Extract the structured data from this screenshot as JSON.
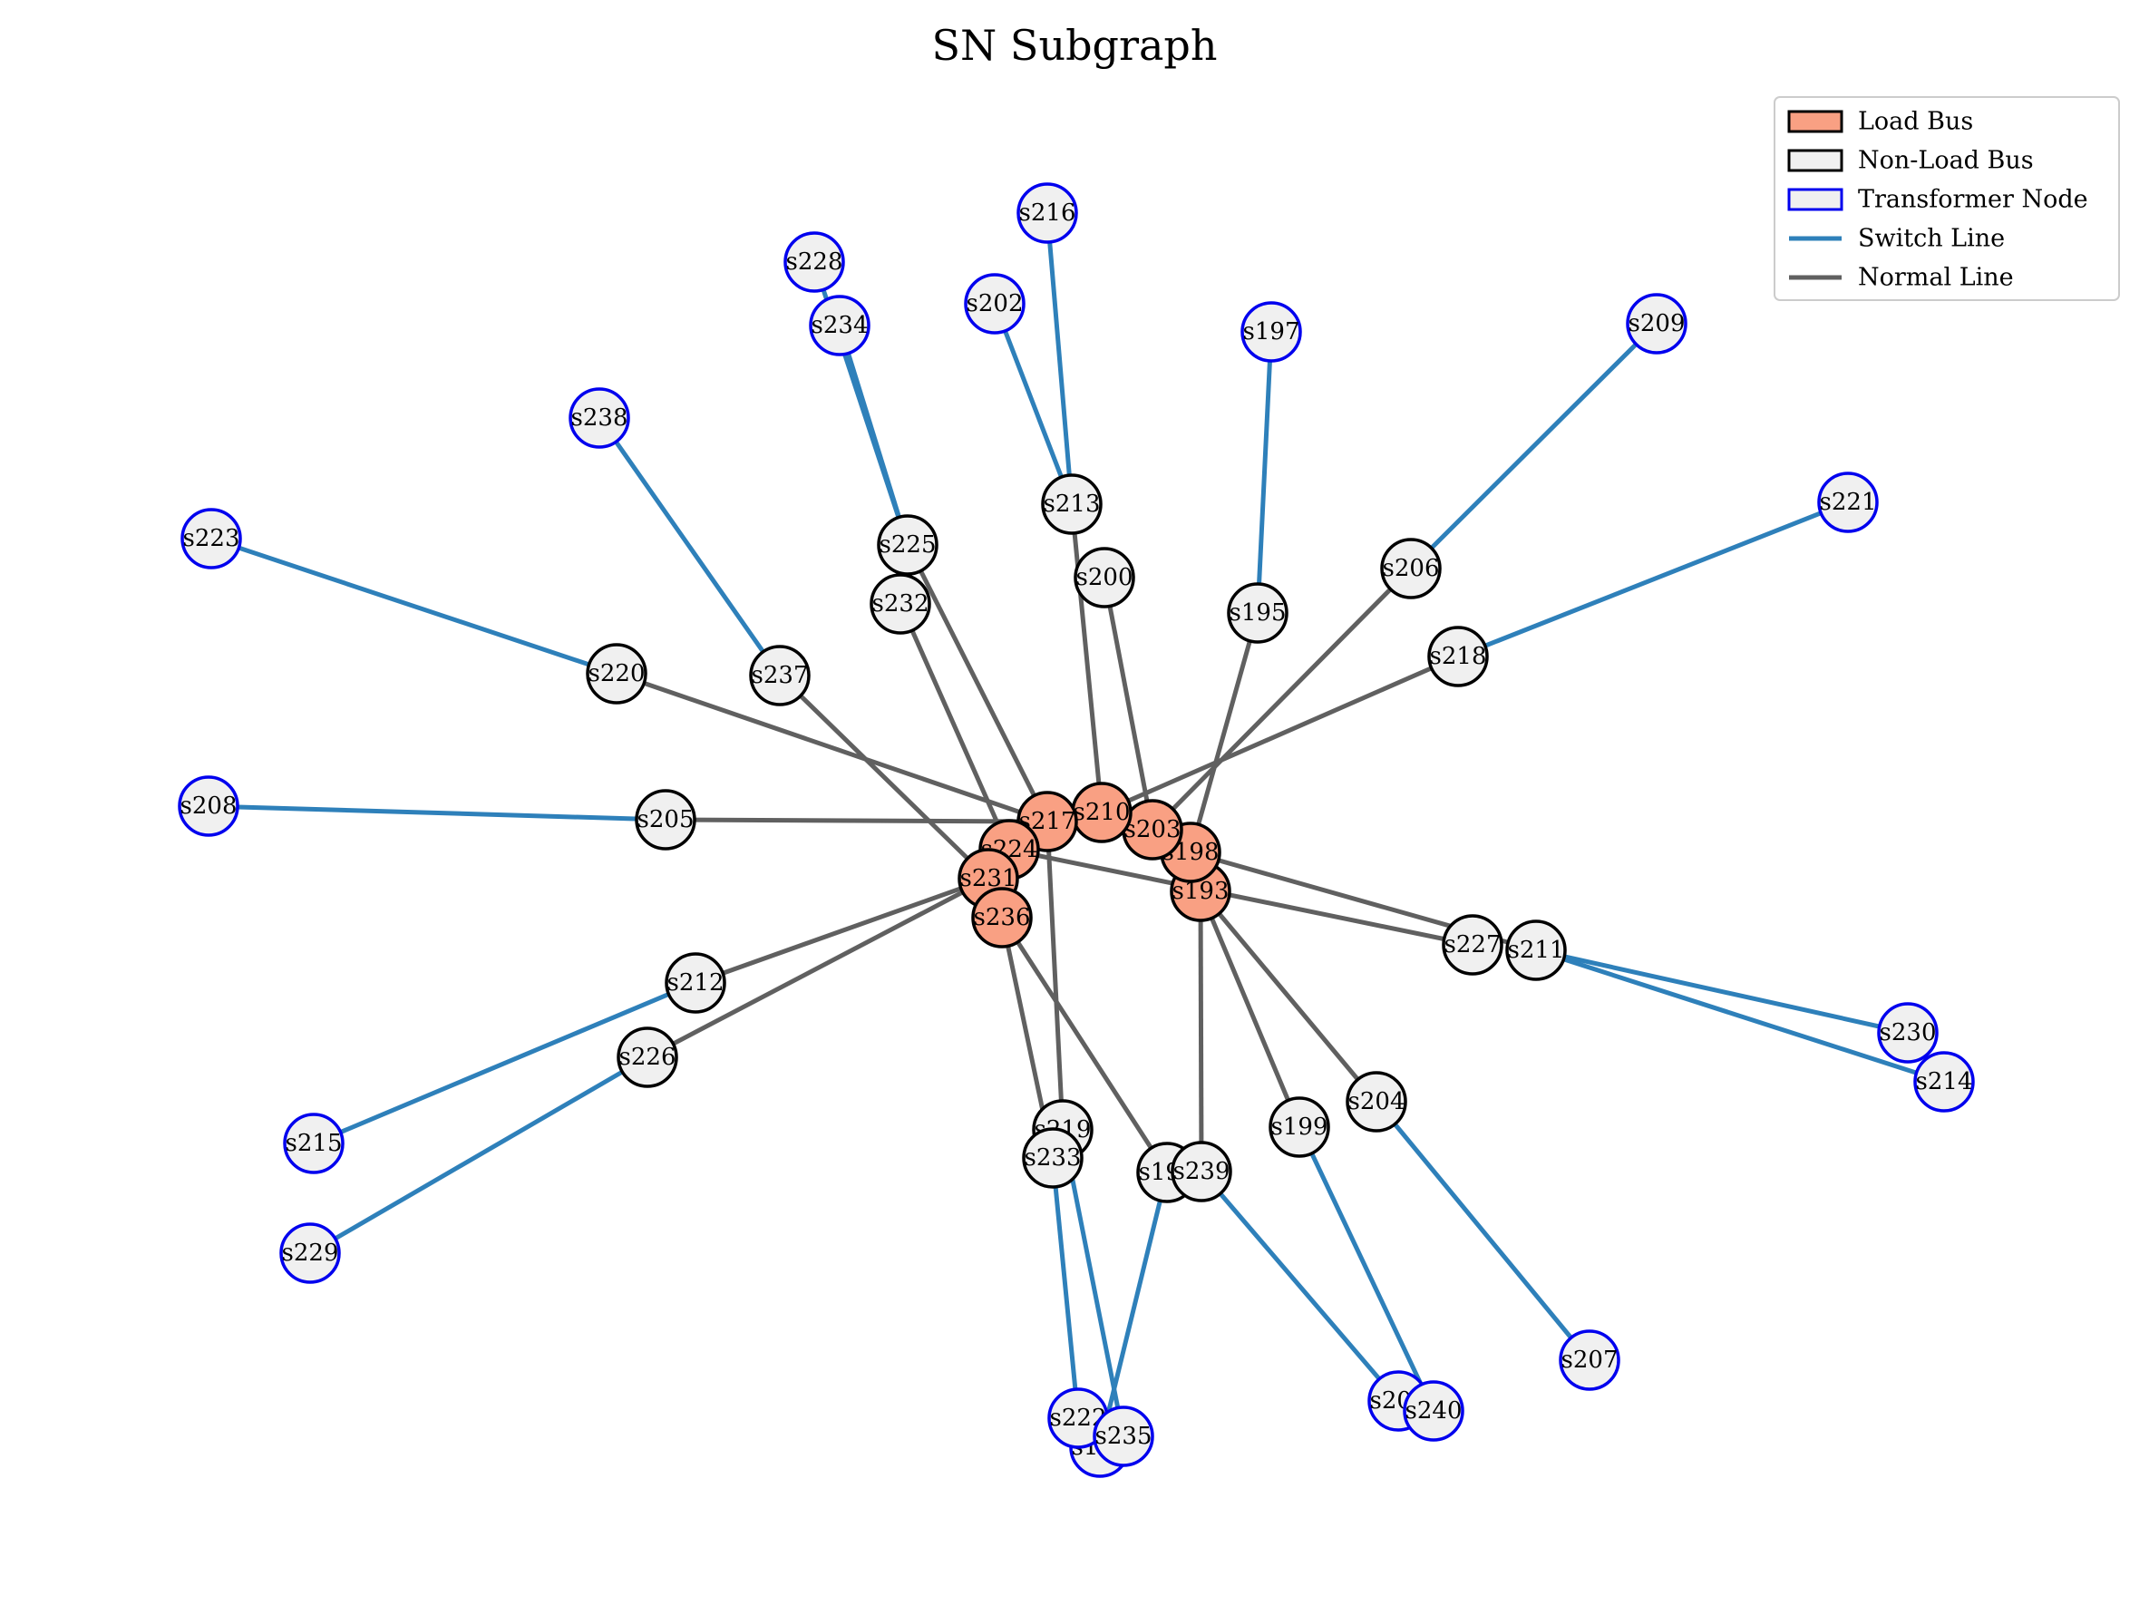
{
  "title": "SN Subgraph",
  "colors": {
    "load_fill": "#F9A083",
    "nonload_fill": "#F0F0F0",
    "node_stroke": "#000000",
    "transformer_stroke": "#0000EE",
    "switch_line": "#2E80BA",
    "normal_line": "#606060"
  },
  "legend": {
    "placement": "top-right",
    "items": [
      {
        "kind": "load",
        "label": "Load Bus"
      },
      {
        "kind": "nonload",
        "label": "Non-Load Bus"
      },
      {
        "kind": "transformer",
        "label": "Transformer Node"
      },
      {
        "kind": "switch",
        "label": "Switch Line"
      },
      {
        "kind": "normal",
        "label": "Normal Line"
      }
    ]
  },
  "nodes": [
    {
      "id": "s193",
      "type": "load"
    },
    {
      "id": "s194",
      "type": "nonload"
    },
    {
      "id": "s195",
      "type": "nonload"
    },
    {
      "id": "s196",
      "type": "transformer"
    },
    {
      "id": "s197",
      "type": "transformer"
    },
    {
      "id": "s198",
      "type": "load"
    },
    {
      "id": "s199",
      "type": "nonload"
    },
    {
      "id": "s200",
      "type": "nonload"
    },
    {
      "id": "s201",
      "type": "transformer"
    },
    {
      "id": "s202",
      "type": "transformer"
    },
    {
      "id": "s203",
      "type": "load"
    },
    {
      "id": "s204",
      "type": "nonload"
    },
    {
      "id": "s205",
      "type": "nonload"
    },
    {
      "id": "s206",
      "type": "nonload"
    },
    {
      "id": "s207",
      "type": "transformer"
    },
    {
      "id": "s208",
      "type": "transformer"
    },
    {
      "id": "s209",
      "type": "transformer"
    },
    {
      "id": "s210",
      "type": "load"
    },
    {
      "id": "s211",
      "type": "nonload"
    },
    {
      "id": "s212",
      "type": "nonload"
    },
    {
      "id": "s213",
      "type": "nonload"
    },
    {
      "id": "s214",
      "type": "transformer"
    },
    {
      "id": "s215",
      "type": "transformer"
    },
    {
      "id": "s216",
      "type": "transformer"
    },
    {
      "id": "s217",
      "type": "load"
    },
    {
      "id": "s218",
      "type": "nonload"
    },
    {
      "id": "s219",
      "type": "nonload"
    },
    {
      "id": "s220",
      "type": "nonload"
    },
    {
      "id": "s221",
      "type": "transformer"
    },
    {
      "id": "s222",
      "type": "transformer"
    },
    {
      "id": "s223",
      "type": "transformer"
    },
    {
      "id": "s224",
      "type": "load"
    },
    {
      "id": "s225",
      "type": "nonload"
    },
    {
      "id": "s226",
      "type": "nonload"
    },
    {
      "id": "s227",
      "type": "nonload"
    },
    {
      "id": "s228",
      "type": "transformer"
    },
    {
      "id": "s229",
      "type": "transformer"
    },
    {
      "id": "s230",
      "type": "transformer"
    },
    {
      "id": "s231",
      "type": "load"
    },
    {
      "id": "s232",
      "type": "nonload"
    },
    {
      "id": "s233",
      "type": "nonload"
    },
    {
      "id": "s234",
      "type": "transformer"
    },
    {
      "id": "s235",
      "type": "transformer"
    },
    {
      "id": "s236",
      "type": "load"
    },
    {
      "id": "s237",
      "type": "nonload"
    },
    {
      "id": "s238",
      "type": "transformer"
    },
    {
      "id": "s239",
      "type": "nonload"
    },
    {
      "id": "s240",
      "type": "transformer"
    }
  ],
  "edges": [
    {
      "from": "s213",
      "to": "s210",
      "type": "normal"
    },
    {
      "from": "s200",
      "to": "s203",
      "type": "normal"
    },
    {
      "from": "s195",
      "to": "s198",
      "type": "normal"
    },
    {
      "from": "s206",
      "to": "s203",
      "type": "normal"
    },
    {
      "from": "s218",
      "to": "s210",
      "type": "normal"
    },
    {
      "from": "s220",
      "to": "s217",
      "type": "normal"
    },
    {
      "from": "s205",
      "to": "s217",
      "type": "normal"
    },
    {
      "from": "s232",
      "to": "s224",
      "type": "normal"
    },
    {
      "from": "s225",
      "to": "s217",
      "type": "normal"
    },
    {
      "from": "s237",
      "to": "s231",
      "type": "normal"
    },
    {
      "from": "s212",
      "to": "s231",
      "type": "normal"
    },
    {
      "from": "s226",
      "to": "s231",
      "type": "normal"
    },
    {
      "from": "s236",
      "to": "s233",
      "type": "normal"
    },
    {
      "from": "s236",
      "to": "s194",
      "type": "normal"
    },
    {
      "from": "s217",
      "to": "s219",
      "type": "normal"
    },
    {
      "from": "s193",
      "to": "s239",
      "type": "normal"
    },
    {
      "from": "s193",
      "to": "s199",
      "type": "normal"
    },
    {
      "from": "s193",
      "to": "s204",
      "type": "normal"
    },
    {
      "from": "s198",
      "to": "s211",
      "type": "normal"
    },
    {
      "from": "s224",
      "to": "s227",
      "type": "normal"
    },
    {
      "from": "s216",
      "to": "s213",
      "type": "switch"
    },
    {
      "from": "s202",
      "to": "s213",
      "type": "switch"
    },
    {
      "from": "s197",
      "to": "s195",
      "type": "switch"
    },
    {
      "from": "s209",
      "to": "s206",
      "type": "switch"
    },
    {
      "from": "s221",
      "to": "s218",
      "type": "switch"
    },
    {
      "from": "s223",
      "to": "s220",
      "type": "switch"
    },
    {
      "from": "s238",
      "to": "s237",
      "type": "switch"
    },
    {
      "from": "s228",
      "to": "s225",
      "type": "switch"
    },
    {
      "from": "s234",
      "to": "s225",
      "type": "switch"
    },
    {
      "from": "s208",
      "to": "s205",
      "type": "switch"
    },
    {
      "from": "s215",
      "to": "s212",
      "type": "switch"
    },
    {
      "from": "s229",
      "to": "s226",
      "type": "switch"
    },
    {
      "from": "s233",
      "to": "s222",
      "type": "switch"
    },
    {
      "from": "s219",
      "to": "s235",
      "type": "switch"
    },
    {
      "from": "s194",
      "to": "s196",
      "type": "switch"
    },
    {
      "from": "s239",
      "to": "s201",
      "type": "switch"
    },
    {
      "from": "s199",
      "to": "s240",
      "type": "switch"
    },
    {
      "from": "s204",
      "to": "s207",
      "type": "switch"
    },
    {
      "from": "s211",
      "to": "s230",
      "type": "switch"
    },
    {
      "from": "s211",
      "to": "s214",
      "type": "switch"
    }
  ]
}
